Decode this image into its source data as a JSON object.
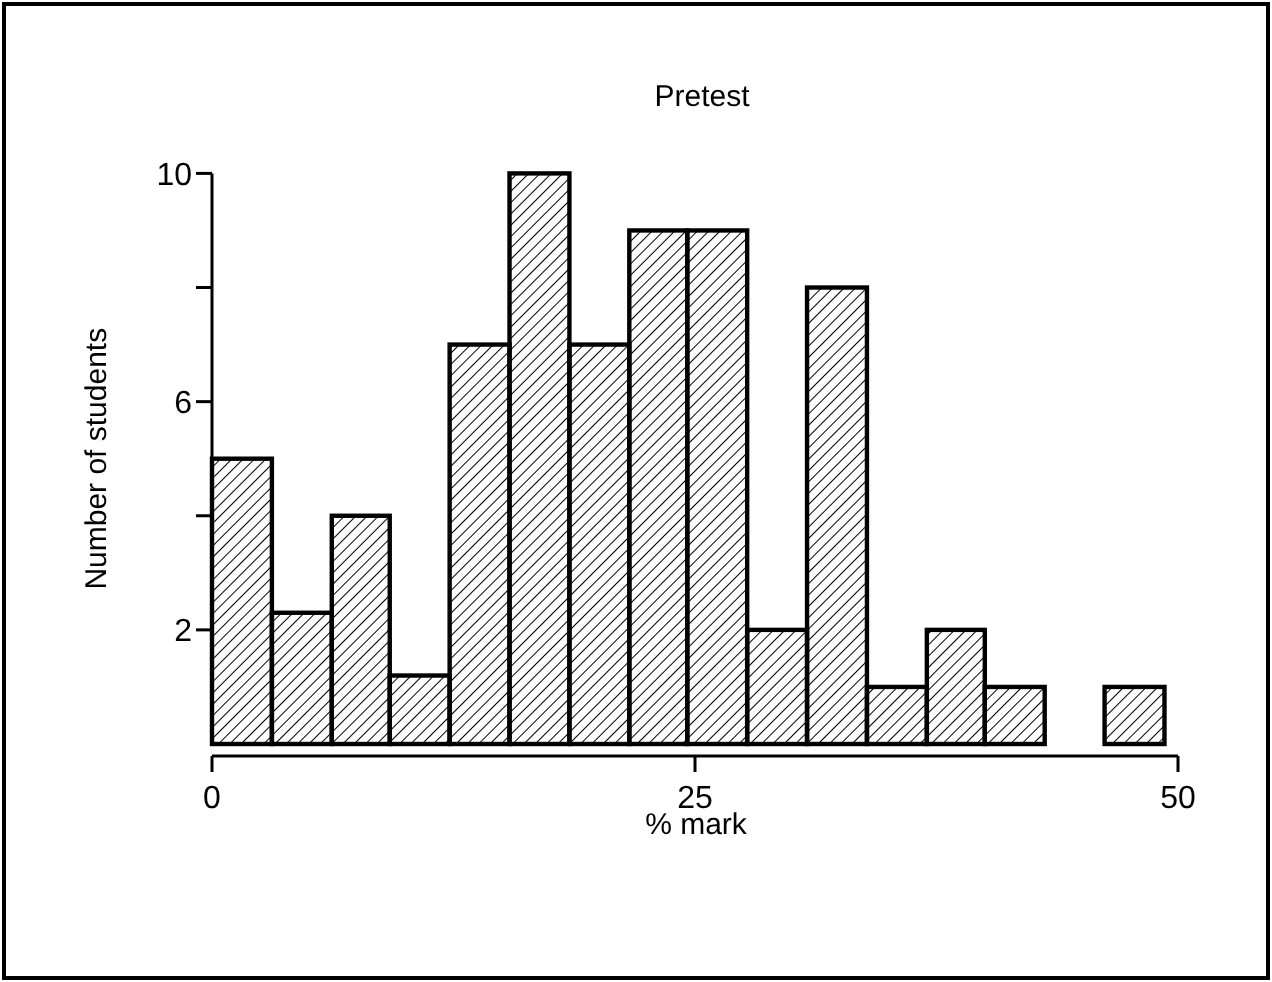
{
  "chart_data": {
    "type": "histogram",
    "title": "Pretest",
    "xlabel": "% mark",
    "ylabel": "Number of students",
    "bins": [
      0,
      3.1,
      6.2,
      9.2,
      12.3,
      15.4,
      18.5,
      21.6,
      24.6,
      27.7,
      30.8,
      33.9,
      37,
      40,
      43.1,
      46.2,
      49.3
    ],
    "values": [
      5,
      2.3,
      4,
      1.2,
      7,
      10,
      7,
      9,
      9,
      2,
      8,
      1,
      2,
      1,
      0,
      1
    ],
    "color": "#000000",
    "xlim": [
      0,
      50
    ],
    "xticks": [
      0,
      25,
      50
    ],
    "ylim": [
      0,
      10
    ],
    "yticks": [
      {
        "value": 2,
        "label": "2"
      },
      {
        "value": 4,
        "label": null
      },
      {
        "value": 6,
        "label": "6"
      },
      {
        "value": 8,
        "label": null
      },
      {
        "value": 10,
        "label": "10"
      }
    ],
    "grid": false
  }
}
